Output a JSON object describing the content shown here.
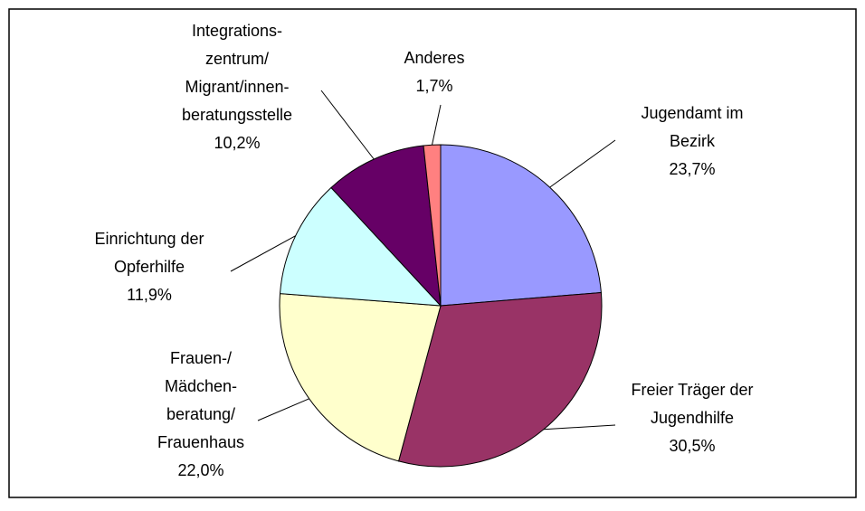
{
  "chart_data": {
    "type": "pie",
    "categories": [
      [
        "Jugendamt im",
        "Bezirk"
      ],
      [
        "Freier Träger der",
        "Jugendhilfe"
      ],
      [
        "Frauen-/",
        "Mädchen-",
        "beratung/",
        "Frauenhaus"
      ],
      [
        "Einrichtung der",
        "Opferhilfe"
      ],
      [
        "Integrations-",
        "zentrum/",
        "Migrant/innen-",
        "beratungsstelle"
      ],
      [
        "Anderes"
      ]
    ],
    "values": [
      23.7,
      30.5,
      22.0,
      11.9,
      10.2,
      1.7
    ],
    "value_labels": [
      "23,7%",
      "30,5%",
      "22,0%",
      "11,9%",
      "10,2%",
      "1,7%"
    ],
    "colors": [
      "#9999ff",
      "#993366",
      "#ffffcc",
      "#ccffff",
      "#660066",
      "#ff8080"
    ]
  }
}
